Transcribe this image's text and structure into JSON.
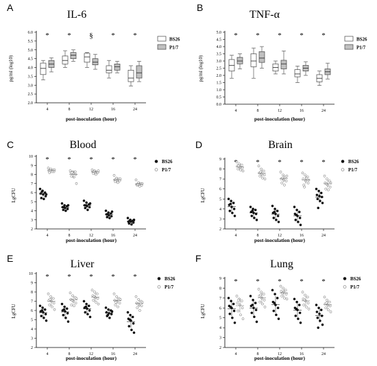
{
  "chart_data": [
    {
      "type": "box",
      "panel_label": "A",
      "title": "IL-6",
      "ylabel": "pg/ml  (log10)",
      "xlabel": "post-inoculation (hour)",
      "categories": [
        "4",
        "8",
        "12",
        "16",
        "24"
      ],
      "ylim": [
        2.0,
        6.0
      ],
      "yticks": [
        "2.0",
        "2.5",
        "3.0",
        "3.5",
        "4.0",
        "4.5",
        "5.0",
        "5.5",
        "6.0"
      ],
      "annotations": [
        "*",
        "*",
        "§",
        "*",
        "*"
      ],
      "legend_position": "right",
      "series": [
        {
          "name": "BS26",
          "color": "#ffffff",
          "boxes": [
            {
              "min": 3.3,
              "q1": 3.6,
              "median": 3.95,
              "q3": 4.25,
              "max": 4.4
            },
            {
              "min": 4.0,
              "q1": 4.2,
              "median": 4.4,
              "q3": 4.65,
              "max": 4.95
            },
            {
              "min": 4.0,
              "q1": 4.3,
              "median": 4.6,
              "q3": 4.8,
              "max": 4.85
            },
            {
              "min": 3.4,
              "q1": 3.7,
              "median": 3.85,
              "q3": 4.1,
              "max": 4.4
            },
            {
              "min": 2.95,
              "q1": 3.2,
              "median": 3.4,
              "q3": 3.85,
              "max": 4.1
            }
          ]
        },
        {
          "name": "P1/7",
          "color": "#c0c0c0",
          "boxes": [
            {
              "min": 3.75,
              "q1": 4.0,
              "median": 4.2,
              "q3": 4.4,
              "max": 4.55
            },
            {
              "min": 4.35,
              "q1": 4.5,
              "median": 4.7,
              "q3": 4.85,
              "max": 5.0
            },
            {
              "min": 3.9,
              "q1": 4.15,
              "median": 4.3,
              "q3": 4.5,
              "max": 4.75
            },
            {
              "min": 3.7,
              "q1": 3.85,
              "median": 4.05,
              "q3": 4.2,
              "max": 4.35
            },
            {
              "min": 3.2,
              "q1": 3.4,
              "median": 3.7,
              "q3": 4.1,
              "max": 4.35
            }
          ]
        }
      ]
    },
    {
      "type": "box",
      "panel_label": "B",
      "title": "TNF-α",
      "ylabel": "pg/ml  (log10)",
      "xlabel": "post-inoculation (hour)",
      "categories": [
        "4",
        "8",
        "12",
        "16",
        "24"
      ],
      "ylim": [
        0.0,
        5.0
      ],
      "yticks": [
        "0.0",
        "0.5",
        "1.0",
        "1.5",
        "2.0",
        "2.5",
        "3.0",
        "3.5",
        "4.0",
        "4.5",
        "5.0"
      ],
      "annotations": [
        "*",
        "*",
        "*",
        "*",
        "*"
      ],
      "legend_position": "right",
      "series": [
        {
          "name": "BS26",
          "color": "#ffffff",
          "boxes": [
            {
              "min": 1.8,
              "q1": 2.3,
              "median": 2.7,
              "q3": 3.1,
              "max": 3.4
            },
            {
              "min": 1.8,
              "q1": 2.6,
              "median": 3.0,
              "q3": 3.5,
              "max": 3.9
            },
            {
              "min": 2.1,
              "q1": 2.3,
              "median": 2.55,
              "q3": 2.8,
              "max": 3.0
            },
            {
              "min": 1.5,
              "q1": 1.9,
              "median": 2.1,
              "q3": 2.4,
              "max": 2.65
            },
            {
              "min": 1.3,
              "q1": 1.55,
              "median": 1.8,
              "q3": 2.05,
              "max": 2.3
            }
          ]
        },
        {
          "name": "P1/7",
          "color": "#c0c0c0",
          "boxes": [
            {
              "min": 2.45,
              "q1": 2.8,
              "median": 3.0,
              "q3": 3.25,
              "max": 3.5
            },
            {
              "min": 2.5,
              "q1": 2.9,
              "median": 3.2,
              "q3": 3.65,
              "max": 4.0
            },
            {
              "min": 2.1,
              "q1": 2.45,
              "median": 2.8,
              "q3": 3.05,
              "max": 3.7
            },
            {
              "min": 2.0,
              "q1": 2.3,
              "median": 2.5,
              "q3": 2.7,
              "max": 2.95
            },
            {
              "min": 1.75,
              "q1": 2.05,
              "median": 2.25,
              "q3": 2.45,
              "max": 2.85
            }
          ]
        }
      ]
    },
    {
      "type": "scatter",
      "panel_label": "C",
      "title": "Blood",
      "ylabel": "LgCFU",
      "xlabel": "post-inoculation (hour)",
      "categories": [
        "4",
        "8",
        "12",
        "16",
        "24"
      ],
      "ylim": [
        2,
        10
      ],
      "yticks": [
        "2",
        "3",
        "4",
        "5",
        "6",
        "7",
        "8",
        "9",
        "10"
      ],
      "annotations": [
        "*",
        "*",
        "*",
        "*",
        "*"
      ],
      "legend_position": "right",
      "series": [
        {
          "name": "BS26",
          "marker": "filled",
          "points": [
            [
              6.4,
              6.2,
              6.0,
              5.9,
              5.8,
              5.6,
              5.4,
              5.3,
              5.8,
              6.1
            ],
            [
              4.8,
              4.6,
              4.5,
              4.4,
              4.3,
              4.2,
              4.1,
              4.0,
              4.6,
              4.4
            ],
            [
              5.1,
              4.9,
              4.7,
              4.6,
              4.5,
              4.4,
              4.3,
              4.1,
              4.8,
              4.6
            ],
            [
              4.0,
              3.8,
              3.7,
              3.6,
              3.5,
              3.4,
              3.3,
              3.2,
              3.9,
              3.6
            ],
            [
              3.2,
              3.0,
              2.9,
              2.8,
              2.8,
              2.7,
              2.6,
              2.5,
              3.0,
              2.9
            ]
          ]
        },
        {
          "name": "P1/7",
          "marker": "open",
          "points": [
            [
              8.7,
              8.6,
              8.5,
              8.4,
              8.4,
              8.3,
              8.2,
              8.3,
              8.5,
              8.4
            ],
            [
              8.4,
              8.3,
              8.3,
              8.2,
              8.1,
              8.0,
              7.8,
              7.7,
              7.0,
              8.2
            ],
            [
              8.5,
              8.4,
              8.3,
              8.3,
              8.2,
              8.2,
              8.1,
              8.0,
              8.4,
              8.3
            ],
            [
              7.9,
              7.6,
              7.5,
              7.4,
              7.3,
              7.3,
              7.2,
              7.1,
              7.5,
              7.4
            ],
            [
              7.4,
              7.1,
              7.0,
              6.9,
              6.9,
              6.8,
              6.8,
              6.7,
              7.0,
              6.9
            ]
          ]
        }
      ]
    },
    {
      "type": "scatter",
      "panel_label": "D",
      "title": "Brain",
      "ylabel": "LgCFU",
      "xlabel": "post-inoculation (hour)",
      "categories": [
        "4",
        "8",
        "12",
        "16",
        "24"
      ],
      "ylim": [
        2,
        9
      ],
      "yticks": [
        "2",
        "3",
        "4",
        "5",
        "6",
        "7",
        "8",
        "9"
      ],
      "annotations": [
        "*",
        "*",
        "*",
        "*",
        "*"
      ],
      "legend_position": "right",
      "series": [
        {
          "name": "BS26",
          "marker": "filled",
          "points": [
            [
              5.0,
              4.8,
              4.6,
              4.4,
              4.2,
              4.0,
              3.8,
              3.6,
              3.3,
              4.5
            ],
            [
              4.2,
              4.0,
              3.9,
              3.7,
              3.6,
              3.5,
              3.3,
              3.1,
              2.9,
              3.8
            ],
            [
              4.3,
              4.0,
              3.8,
              3.6,
              3.5,
              3.3,
              3.1,
              2.9,
              2.7,
              3.7
            ],
            [
              4.2,
              3.9,
              3.7,
              3.5,
              3.3,
              3.1,
              2.9,
              2.7,
              2.4,
              3.4
            ],
            [
              6.0,
              5.8,
              5.6,
              5.4,
              5.3,
              5.2,
              5.0,
              4.8,
              4.6,
              4.1
            ]
          ]
        },
        {
          "name": "P1/7",
          "marker": "open",
          "points": [
            [
              8.7,
              8.5,
              8.4,
              8.3,
              8.2,
              8.1,
              8.0,
              7.9,
              7.8,
              8.3
            ],
            [
              8.3,
              8.0,
              7.8,
              7.6,
              7.5,
              7.4,
              7.3,
              7.1,
              7.0,
              7.7
            ],
            [
              7.7,
              7.4,
              7.2,
              7.0,
              6.9,
              6.8,
              6.6,
              6.4,
              7.3,
              7.1
            ],
            [
              7.6,
              7.4,
              7.2,
              7.0,
              6.8,
              6.6,
              6.4,
              7.1,
              6.9,
              6.2
            ],
            [
              7.3,
              7.0,
              6.8,
              6.6,
              6.4,
              6.2,
              6.0,
              5.9,
              6.6,
              6.5
            ]
          ]
        }
      ]
    },
    {
      "type": "scatter",
      "panel_label": "E",
      "title": "Liver",
      "ylabel": "LgCFU",
      "xlabel": "post-inoculation (hour)",
      "categories": [
        "4",
        "8",
        "12",
        "16",
        "24"
      ],
      "ylim": [
        2,
        10
      ],
      "yticks": [
        "2",
        "3",
        "4",
        "5",
        "6",
        "7",
        "8",
        "9",
        "10"
      ],
      "annotations": [
        "*",
        "*",
        "*",
        "*",
        "*"
      ],
      "legend_position": "right",
      "series": [
        {
          "name": "BS26",
          "marker": "filled",
          "points": [
            [
              6.5,
              6.3,
              6.1,
              5.9,
              5.8,
              5.6,
              5.4,
              5.2,
              4.9,
              6.0
            ],
            [
              6.7,
              6.4,
              6.2,
              6.0,
              5.9,
              5.7,
              5.5,
              5.2,
              4.8,
              6.1
            ],
            [
              7.0,
              6.7,
              6.5,
              6.3,
              6.2,
              6.0,
              5.8,
              5.6,
              5.3,
              6.4
            ],
            [
              6.3,
              6.1,
              6.0,
              5.8,
              5.7,
              5.6,
              5.4,
              5.2,
              5.9,
              5.5
            ],
            [
              5.8,
              5.5,
              5.3,
              5.1,
              4.9,
              4.6,
              4.3,
              3.9,
              3.6,
              5.0
            ]
          ]
        },
        {
          "name": "P1/7",
          "marker": "open",
          "points": [
            [
              7.8,
              7.5,
              7.3,
              7.1,
              7.0,
              6.8,
              6.6,
              6.4,
              6.1,
              7.2
            ],
            [
              7.9,
              7.6,
              7.4,
              7.2,
              7.0,
              6.8,
              6.6,
              6.5,
              7.3,
              7.1
            ],
            [
              8.2,
              8.0,
              7.8,
              7.6,
              7.4,
              7.3,
              7.1,
              6.9,
              6.7,
              7.5
            ],
            [
              7.8,
              7.5,
              7.3,
              7.1,
              7.0,
              6.8,
              6.6,
              6.4,
              7.2,
              6.9
            ],
            [
              7.5,
              7.2,
              7.0,
              6.8,
              6.6,
              6.5,
              6.3,
              6.0,
              6.9,
              6.7
            ]
          ]
        }
      ]
    },
    {
      "type": "scatter",
      "panel_label": "F",
      "title": "Lung",
      "ylabel": "LgCFU",
      "xlabel": "post-inoculation (hour)",
      "categories": [
        "4",
        "8",
        "12",
        "16",
        "24"
      ],
      "ylim": [
        2,
        9
      ],
      "yticks": [
        "2",
        "3",
        "4",
        "5",
        "6",
        "7",
        "8",
        "9"
      ],
      "annotations": [
        "*",
        "*",
        "*",
        "*",
        "*"
      ],
      "legend_position": "right",
      "series": [
        {
          "name": "BS26",
          "marker": "filled",
          "points": [
            [
              7.0,
              6.7,
              6.4,
              6.2,
              6.0,
              5.7,
              5.4,
              5.0,
              4.5,
              6.1
            ],
            [
              7.2,
              6.8,
              6.5,
              6.2,
              6.0,
              5.8,
              5.5,
              5.1,
              4.6,
              6.3
            ],
            [
              7.8,
              7.4,
              7.0,
              6.6,
              6.3,
              6.0,
              5.7,
              5.3,
              4.9,
              6.5
            ],
            [
              6.9,
              6.6,
              6.3,
              6.0,
              5.8,
              5.5,
              5.2,
              4.9,
              4.5,
              5.9
            ],
            [
              6.3,
              6.0,
              5.8,
              5.6,
              5.4,
              5.2,
              5.0,
              4.7,
              4.3,
              4.0
            ]
          ]
        },
        {
          "name": "P1/7",
          "marker": "open",
          "points": [
            [
              7.2,
              6.9,
              6.7,
              6.5,
              6.3,
              6.0,
              5.7,
              5.3,
              4.9,
              6.8
            ],
            [
              7.9,
              7.6,
              7.4,
              7.2,
              7.0,
              6.8,
              6.6,
              6.4,
              6.1,
              7.3
            ],
            [
              8.2,
              8.0,
              7.8,
              7.7,
              7.6,
              7.4,
              7.2,
              7.0,
              6.9,
              7.5
            ],
            [
              7.6,
              7.3,
              7.1,
              6.9,
              6.7,
              6.5,
              6.3,
              6.1,
              5.9,
              6.8
            ],
            [
              7.1,
              6.8,
              6.6,
              6.4,
              6.3,
              6.2,
              6.0,
              5.8,
              5.6,
              6.5
            ]
          ]
        }
      ]
    }
  ]
}
